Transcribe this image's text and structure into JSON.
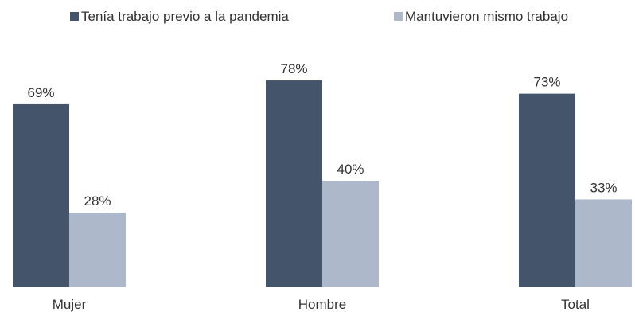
{
  "chart_data": {
    "type": "bar",
    "title": "",
    "xlabel": "",
    "ylabel": "",
    "categories": [
      "Mujer",
      "Hombre",
      "Total"
    ],
    "series": [
      {
        "name": "Tenía trabajo previo a la pandemia",
        "values": [
          69,
          78,
          73
        ],
        "labels": [
          "69%",
          "78%",
          "73%"
        ],
        "color": "#44546a"
      },
      {
        "name": "Mantuvieron mismo trabajo",
        "values": [
          28,
          40,
          33
        ],
        "labels": [
          "28%",
          "40%",
          "33%"
        ],
        "color": "#adb9ca"
      }
    ],
    "ylim": [
      0,
      100
    ],
    "unit": "%",
    "grid": false,
    "legend": "top-center"
  }
}
